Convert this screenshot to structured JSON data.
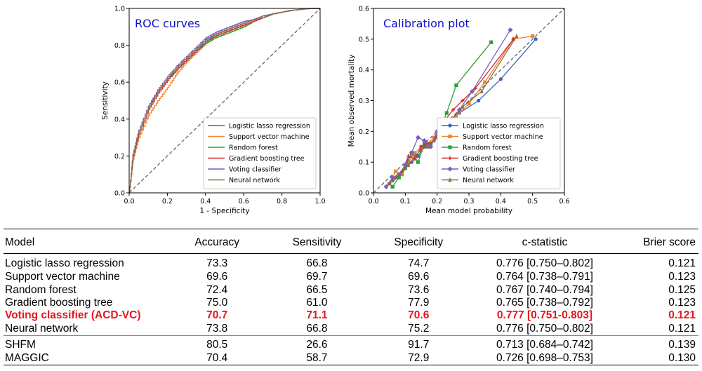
{
  "colors": {
    "lasso": "#3b64b8",
    "svm": "#ef8430",
    "rf": "#2ca02c",
    "gbt": "#d62728",
    "vote": "#7b5fc0",
    "nn": "#8c6d46",
    "highlight": "#e8141b",
    "title": "#1010c8"
  },
  "chart_data": [
    {
      "type": "line",
      "title": "ROC curves",
      "xlabel": "1 - Specificity",
      "ylabel": "Sensitivity",
      "xlim": [
        0,
        1
      ],
      "ylim": [
        0,
        1
      ],
      "xticks": [
        "0.0",
        "0.2",
        "0.4",
        "0.6",
        "0.8",
        "1.0"
      ],
      "yticks": [
        "0.0",
        "0.2",
        "0.4",
        "0.6",
        "0.8",
        "1.0"
      ],
      "legend_position": "bottom-right",
      "series": [
        {
          "name": "Logistic lasso regression",
          "key": "lasso",
          "x": [
            0,
            0.02,
            0.05,
            0.1,
            0.15,
            0.2,
            0.25,
            0.3,
            0.35,
            0.4,
            0.45,
            0.5,
            0.55,
            0.6,
            0.65,
            0.7,
            0.75,
            0.8,
            0.85,
            0.9,
            0.95,
            1.0
          ],
          "y": [
            0,
            0.2,
            0.33,
            0.46,
            0.55,
            0.62,
            0.68,
            0.73,
            0.78,
            0.83,
            0.86,
            0.88,
            0.9,
            0.92,
            0.94,
            0.95,
            0.97,
            0.98,
            0.99,
            0.995,
            1.0,
            1.0
          ]
        },
        {
          "name": "Support vector machine",
          "key": "svm",
          "x": [
            0,
            0.02,
            0.05,
            0.1,
            0.15,
            0.2,
            0.25,
            0.3,
            0.35,
            0.4,
            0.45,
            0.5,
            0.55,
            0.6,
            0.65,
            0.7,
            0.75,
            0.8,
            0.85,
            0.9,
            0.95,
            1.0
          ],
          "y": [
            0,
            0.18,
            0.3,
            0.42,
            0.5,
            0.57,
            0.65,
            0.71,
            0.76,
            0.81,
            0.85,
            0.87,
            0.89,
            0.91,
            0.93,
            0.95,
            0.97,
            0.98,
            0.99,
            0.995,
            1.0,
            1.0
          ]
        },
        {
          "name": "Random forest",
          "key": "rf",
          "x": [
            0,
            0.02,
            0.05,
            0.1,
            0.15,
            0.2,
            0.25,
            0.3,
            0.35,
            0.4,
            0.45,
            0.5,
            0.55,
            0.6,
            0.65,
            0.7,
            0.75,
            0.8,
            0.85,
            0.9,
            0.95,
            1.0
          ],
          "y": [
            0,
            0.21,
            0.34,
            0.47,
            0.55,
            0.62,
            0.67,
            0.72,
            0.77,
            0.81,
            0.84,
            0.86,
            0.88,
            0.9,
            0.93,
            0.95,
            0.97,
            0.98,
            0.99,
            0.995,
            1.0,
            1.0
          ]
        },
        {
          "name": "Gradient boosting tree",
          "key": "gbt",
          "x": [
            0,
            0.02,
            0.05,
            0.1,
            0.15,
            0.2,
            0.25,
            0.3,
            0.35,
            0.4,
            0.45,
            0.5,
            0.55,
            0.6,
            0.65,
            0.7,
            0.75,
            0.8,
            0.85,
            0.9,
            0.95,
            1.0
          ],
          "y": [
            0,
            0.2,
            0.32,
            0.45,
            0.54,
            0.61,
            0.67,
            0.72,
            0.77,
            0.82,
            0.85,
            0.87,
            0.89,
            0.91,
            0.93,
            0.95,
            0.97,
            0.98,
            0.99,
            0.995,
            1.0,
            1.0
          ]
        },
        {
          "name": "Voting classifier",
          "key": "vote",
          "x": [
            0,
            0.02,
            0.05,
            0.1,
            0.15,
            0.2,
            0.25,
            0.3,
            0.35,
            0.4,
            0.45,
            0.5,
            0.55,
            0.6,
            0.65,
            0.7,
            0.75,
            0.8,
            0.85,
            0.9,
            0.95,
            1.0
          ],
          "y": [
            0,
            0.21,
            0.34,
            0.47,
            0.56,
            0.63,
            0.69,
            0.74,
            0.79,
            0.84,
            0.87,
            0.89,
            0.91,
            0.93,
            0.94,
            0.96,
            0.97,
            0.98,
            0.99,
            0.995,
            1.0,
            1.0
          ]
        },
        {
          "name": "Neural network",
          "key": "nn",
          "x": [
            0,
            0.02,
            0.05,
            0.1,
            0.15,
            0.2,
            0.25,
            0.3,
            0.35,
            0.4,
            0.45,
            0.5,
            0.55,
            0.6,
            0.65,
            0.7,
            0.75,
            0.8,
            0.85,
            0.9,
            0.95,
            1.0
          ],
          "y": [
            0,
            0.2,
            0.33,
            0.46,
            0.55,
            0.62,
            0.68,
            0.73,
            0.78,
            0.82,
            0.86,
            0.88,
            0.9,
            0.92,
            0.94,
            0.95,
            0.97,
            0.98,
            0.99,
            0.995,
            1.0,
            1.0
          ]
        }
      ]
    },
    {
      "type": "line",
      "title": "Calibration plot",
      "xlabel": "Mean model probability",
      "ylabel": "Mean observed mortality",
      "xlim": [
        0,
        0.6
      ],
      "ylim": [
        0,
        0.6
      ],
      "xticks": [
        "0.0",
        "0.1",
        "0.2",
        "0.3",
        "0.4",
        "0.5",
        "0.6"
      ],
      "yticks": [
        "0.0",
        "0.1",
        "0.2",
        "0.3",
        "0.4",
        "0.5",
        "0.6"
      ],
      "legend_position": "bottom-right",
      "series": [
        {
          "name": "Logistic lasso regression",
          "key": "lasso",
          "marker": "circle",
          "x": [
            0.04,
            0.06,
            0.08,
            0.1,
            0.12,
            0.14,
            0.16,
            0.18,
            0.2,
            0.23,
            0.27,
            0.33,
            0.4,
            0.51
          ],
          "y": [
            0.02,
            0.04,
            0.05,
            0.08,
            0.1,
            0.12,
            0.15,
            0.16,
            0.18,
            0.22,
            0.26,
            0.3,
            0.37,
            0.5
          ]
        },
        {
          "name": "Support vector machine",
          "key": "svm",
          "marker": "square",
          "x": [
            0.05,
            0.07,
            0.09,
            0.11,
            0.13,
            0.15,
            0.17,
            0.19,
            0.22,
            0.26,
            0.3,
            0.35,
            0.44,
            0.5
          ],
          "y": [
            0.03,
            0.07,
            0.06,
            0.1,
            0.13,
            0.15,
            0.16,
            0.18,
            0.22,
            0.25,
            0.29,
            0.36,
            0.5,
            0.51
          ]
        },
        {
          "name": "Random forest",
          "key": "rf",
          "marker": "square",
          "x": [
            0.06,
            0.08,
            0.1,
            0.12,
            0.14,
            0.16,
            0.18,
            0.2,
            0.23,
            0.26,
            0.37
          ],
          "y": [
            0.02,
            0.05,
            0.08,
            0.13,
            0.1,
            0.16,
            0.16,
            0.18,
            0.26,
            0.35,
            0.49
          ]
        },
        {
          "name": "Gradient boosting tree",
          "key": "gbt",
          "marker": "plus",
          "x": [
            0.05,
            0.07,
            0.09,
            0.11,
            0.13,
            0.15,
            0.17,
            0.19,
            0.22,
            0.25,
            0.28,
            0.32,
            0.44
          ],
          "y": [
            0.03,
            0.05,
            0.07,
            0.12,
            0.11,
            0.15,
            0.16,
            0.17,
            0.23,
            0.27,
            0.3,
            0.34,
            0.5
          ]
        },
        {
          "name": "Voting classifier",
          "key": "vote",
          "marker": "diamond",
          "x": [
            0.04,
            0.06,
            0.08,
            0.1,
            0.12,
            0.14,
            0.16,
            0.18,
            0.2,
            0.23,
            0.27,
            0.31,
            0.43
          ],
          "y": [
            0.02,
            0.05,
            0.06,
            0.09,
            0.13,
            0.18,
            0.17,
            0.15,
            0.2,
            0.22,
            0.27,
            0.33,
            0.53
          ]
        },
        {
          "name": "Neural network",
          "key": "nn",
          "marker": "triangle",
          "x": [
            0.05,
            0.07,
            0.09,
            0.11,
            0.13,
            0.15,
            0.17,
            0.19,
            0.21,
            0.24,
            0.28,
            0.34,
            0.45
          ],
          "y": [
            0.03,
            0.05,
            0.07,
            0.09,
            0.12,
            0.14,
            0.15,
            0.17,
            0.19,
            0.23,
            0.28,
            0.33,
            0.51
          ]
        }
      ]
    },
    {
      "type": "table",
      "columns": [
        "Model",
        "Accuracy",
        "Sensitivity",
        "Specificity",
        "c-statistic",
        "Brier score"
      ],
      "rows": [
        [
          "Logistic lasso regression",
          "73.3",
          "66.8",
          "74.7",
          "0.776 [0.750–0.802]",
          "0.121"
        ],
        [
          "Support vector machine",
          "69.6",
          "69.7",
          "69.6",
          "0.764 [0.738–0.791]",
          "0.123"
        ],
        [
          "Random forest",
          "72.4",
          "66.5",
          "73.6",
          "0.767 [0.740–0.794]",
          "0.125"
        ],
        [
          "Gradient boosting tree",
          "75.0",
          "61.0",
          "77.9",
          "0.765 [0.738–0.792]",
          "0.123"
        ],
        [
          "Voting classifier (ACD-VC)",
          "70.7",
          "71.1",
          "70.6",
          "0.777 [0.751-0.803]",
          "0.121"
        ],
        [
          "Neural network",
          "73.8",
          "66.8",
          "75.2",
          "0.776 [0.750–0.802]",
          "0.121"
        ]
      ],
      "highlight_row": 4,
      "rows_other": [
        [
          "SHFM",
          "80.5",
          "26.6",
          "91.7",
          "0.713 [0.684–0.742]",
          "0.139"
        ],
        [
          "MAGGIC",
          "70.4",
          "58.7",
          "72.9",
          "0.726 [0.698–0.753]",
          "0.130"
        ]
      ]
    }
  ]
}
